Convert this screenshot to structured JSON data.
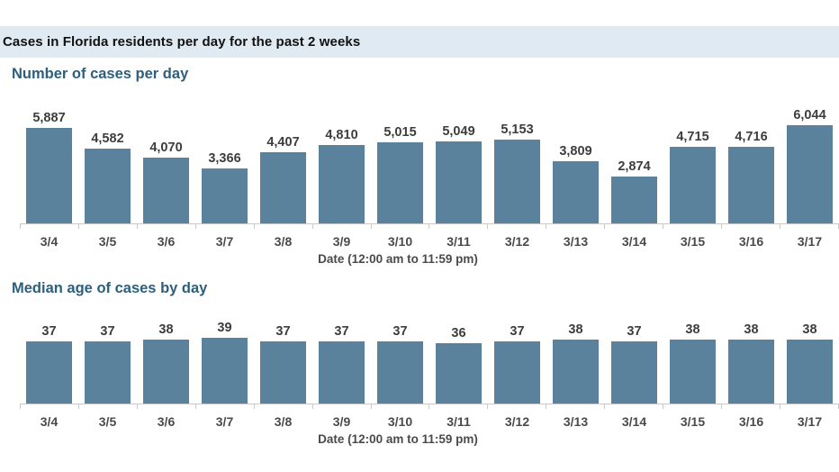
{
  "header": {
    "title": "Cases in Florida residents per day for the past 2 weeks"
  },
  "colors": {
    "bar": "#5a829d",
    "band": "#e0eaf2",
    "header_text": "#111111",
    "section_title": "#2d5f7c",
    "value_label": "#3d3d3d",
    "axis_label": "#4a4a4a",
    "axis_line": "#c9c9c9"
  },
  "chart_data": [
    {
      "type": "bar",
      "title": "Number of cases per day",
      "xlabel": "Date (12:00 am to 11:59 pm)",
      "ylabel": "",
      "categories": [
        "3/4",
        "3/5",
        "3/6",
        "3/7",
        "3/8",
        "3/9",
        "3/10",
        "3/11",
        "3/12",
        "3/13",
        "3/14",
        "3/15",
        "3/16",
        "3/17"
      ],
      "values": [
        5887,
        4582,
        4070,
        3366,
        4407,
        4810,
        5015,
        5049,
        5153,
        3809,
        2874,
        4715,
        4716,
        6044
      ],
      "labels": [
        "5,887",
        "4,582",
        "4,070",
        "3,366",
        "4,407",
        "4,810",
        "5,015",
        "5,049",
        "5,153",
        "3,809",
        "2,874",
        "4,715",
        "4,716",
        "6,044"
      ],
      "ylim": [
        0,
        6044
      ],
      "grid": false
    },
    {
      "type": "bar",
      "title": "Median age of cases by day",
      "xlabel": "Date (12:00 am to 11:59 pm)",
      "ylabel": "",
      "categories": [
        "3/4",
        "3/5",
        "3/6",
        "3/7",
        "3/8",
        "3/9",
        "3/10",
        "3/11",
        "3/12",
        "3/13",
        "3/14",
        "3/15",
        "3/16",
        "3/17"
      ],
      "values": [
        37,
        37,
        38,
        39,
        37,
        37,
        37,
        36,
        37,
        38,
        37,
        38,
        38,
        38
      ],
      "labels": [
        "37",
        "37",
        "38",
        "39",
        "37",
        "37",
        "37",
        "36",
        "37",
        "38",
        "37",
        "38",
        "38",
        "38"
      ],
      "ylim": [
        0,
        39
      ],
      "grid": false
    }
  ]
}
